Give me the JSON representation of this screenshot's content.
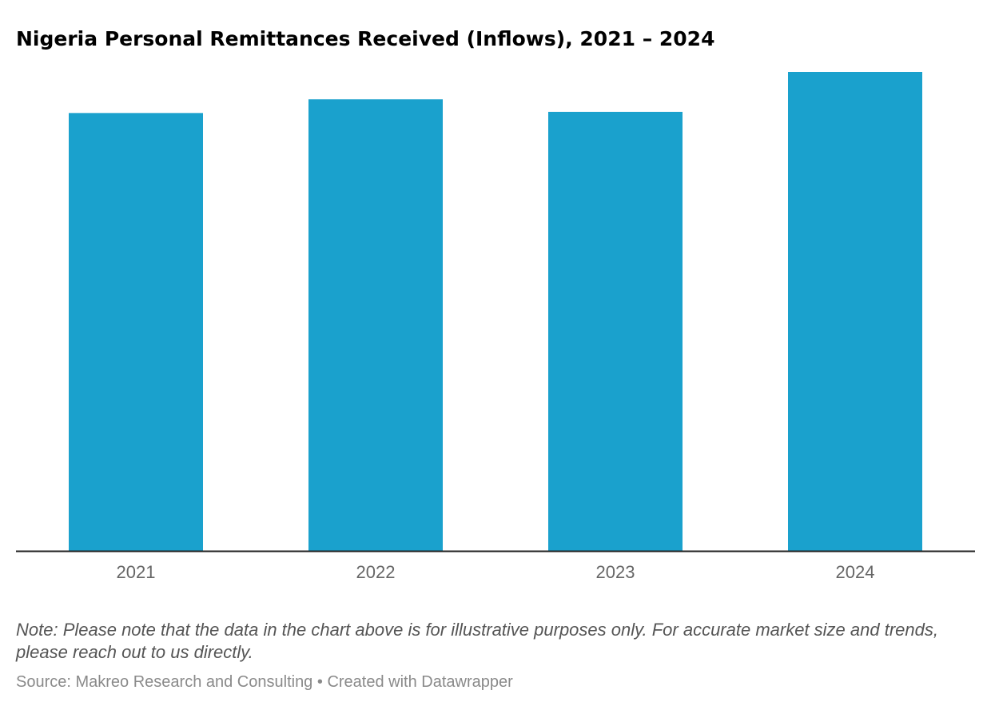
{
  "title": "Nigeria Personal Remittances Received (Inflows), 2021 – 2024",
  "note": "Note: Please note that the data in the chart above is for illustrative purposes only. For accurate market size and trends, please reach out to us directly.",
  "footer": {
    "source": "Source: Makreo Research and Consulting",
    "separator": "•",
    "credit": "Created with Datawrapper"
  },
  "colors": {
    "bar": "#1aa1cd",
    "axis": "#222222",
    "tick_label": "#666666"
  },
  "chart_data": {
    "type": "bar",
    "categories": [
      "2021",
      "2022",
      "2023",
      "2024"
    ],
    "values": [
      19.2,
      19.8,
      19.25,
      21.0
    ],
    "title": "Nigeria Personal Remittances Received (Inflows), 2021 – 2024",
    "xlabel": "",
    "ylabel": "",
    "ylim": [
      0,
      21.0
    ],
    "grid": false,
    "legend": "none"
  }
}
